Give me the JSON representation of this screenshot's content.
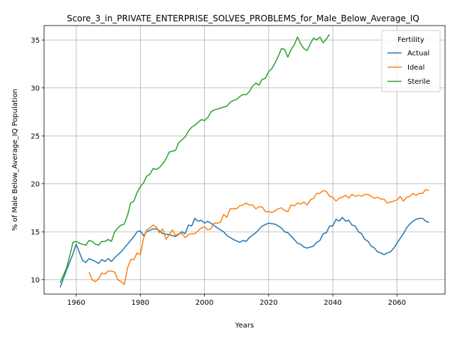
{
  "chart_data": {
    "type": "line",
    "title": "Score_3_in_PRIVATE_ENTERPRISE_SOLVES_PROBLEMS_for_Male_Below_Average_IQ",
    "xlabel": "Years",
    "ylabel": "% of Male Below_Average_IQ Population",
    "xlim": [
      1950,
      2075
    ],
    "ylim": [
      8.5,
      36.5
    ],
    "xticks": [
      1960,
      1980,
      2000,
      2020,
      2040,
      2060
    ],
    "yticks": [
      10,
      15,
      20,
      25,
      30,
      35
    ],
    "grid": true,
    "legend": {
      "title": "Fertility",
      "placement": "top-right"
    },
    "series": [
      {
        "name": "Actual",
        "color": "#1f77b4",
        "points": [
          [
            1955,
            9.2
          ],
          [
            1957,
            11
          ],
          [
            1959,
            12.7
          ],
          [
            1960,
            13.7
          ],
          [
            1962,
            12
          ],
          [
            1963,
            11.8
          ],
          [
            1964,
            12.2
          ],
          [
            1966,
            11.9
          ],
          [
            1967,
            11.7
          ],
          [
            1968,
            12.1
          ],
          [
            1969,
            11.9
          ],
          [
            1970,
            12.2
          ],
          [
            1971,
            11.9
          ],
          [
            1972,
            12.3
          ],
          [
            1974,
            12.9
          ],
          [
            1976,
            13.7
          ],
          [
            1978,
            14.5
          ],
          [
            1979,
            15.0
          ],
          [
            1980,
            15.1
          ],
          [
            1981,
            14.6
          ],
          [
            1982,
            15.0
          ],
          [
            1984,
            15.3
          ],
          [
            1985,
            15.3
          ],
          [
            1986,
            15.1
          ],
          [
            1987,
            14.8
          ],
          [
            1989,
            14.7
          ],
          [
            1991,
            14.5
          ],
          [
            1993,
            15.0
          ],
          [
            1994,
            14.8
          ],
          [
            1995,
            15.7
          ],
          [
            1996,
            15.6
          ],
          [
            1997,
            16.4
          ],
          [
            1998,
            16.1
          ],
          [
            1999,
            16.2
          ],
          [
            2000,
            15.9
          ],
          [
            2001,
            16.1
          ],
          [
            2002,
            15.9
          ],
          [
            2004,
            15.4
          ],
          [
            2006,
            15.0
          ],
          [
            2007,
            14.6
          ],
          [
            2009,
            14.2
          ],
          [
            2011,
            13.9
          ],
          [
            2012,
            14.1
          ],
          [
            2013,
            14.0
          ],
          [
            2014,
            14.4
          ],
          [
            2016,
            14.9
          ],
          [
            2018,
            15.6
          ],
          [
            2020,
            15.9
          ],
          [
            2022,
            15.8
          ],
          [
            2024,
            15.4
          ],
          [
            2025,
            15.0
          ],
          [
            2026,
            14.9
          ],
          [
            2028,
            14.2
          ],
          [
            2029,
            13.8
          ],
          [
            2030,
            13.7
          ],
          [
            2031,
            13.4
          ],
          [
            2032,
            13.3
          ],
          [
            2034,
            13.5
          ],
          [
            2035,
            13.9
          ],
          [
            2036,
            14.1
          ],
          [
            2037,
            14.8
          ],
          [
            2038,
            14.9
          ],
          [
            2039,
            15.6
          ],
          [
            2040,
            15.6
          ],
          [
            2041,
            16.3
          ],
          [
            2042,
            16.1
          ],
          [
            2043,
            16.5
          ],
          [
            2044,
            16.1
          ],
          [
            2045,
            16.2
          ],
          [
            2046,
            15.7
          ],
          [
            2047,
            15.6
          ],
          [
            2048,
            15.0
          ],
          [
            2049,
            14.8
          ],
          [
            2050,
            14.2
          ],
          [
            2051,
            14.0
          ],
          [
            2052,
            13.5
          ],
          [
            2053,
            13.3
          ],
          [
            2054,
            12.9
          ],
          [
            2055,
            12.8
          ],
          [
            2056,
            12.6
          ],
          [
            2057,
            12.8
          ],
          [
            2058,
            12.9
          ],
          [
            2059,
            13.3
          ],
          [
            2060,
            13.8
          ],
          [
            2061,
            14.3
          ],
          [
            2062,
            14.8
          ],
          [
            2063,
            15.4
          ],
          [
            2064,
            15.8
          ],
          [
            2065,
            16.1
          ],
          [
            2066,
            16.3
          ],
          [
            2067,
            16.4
          ],
          [
            2068,
            16.4
          ],
          [
            2069,
            16.1
          ],
          [
            2070,
            16.0
          ]
        ]
      },
      {
        "name": "Ideal",
        "color": "#ff7f0e",
        "points": [
          [
            1964,
            10.8
          ],
          [
            1965,
            10
          ],
          [
            1966,
            9.8
          ],
          [
            1967,
            10.1
          ],
          [
            1968,
            10.7
          ],
          [
            1969,
            10.6
          ],
          [
            1970,
            10.9
          ],
          [
            1971,
            10.9
          ],
          [
            1972,
            10.8
          ],
          [
            1973,
            10.0
          ],
          [
            1974,
            9.8
          ],
          [
            1975,
            9.5
          ],
          [
            1976,
            11.2
          ],
          [
            1977,
            12.1
          ],
          [
            1978,
            12.1
          ],
          [
            1979,
            12.8
          ],
          [
            1980,
            12.6
          ],
          [
            1981,
            14.3
          ],
          [
            1982,
            15.2
          ],
          [
            1983,
            15.4
          ],
          [
            1984,
            15.7
          ],
          [
            1985,
            15.5
          ],
          [
            1986,
            14.9
          ],
          [
            1987,
            15.3
          ],
          [
            1988,
            14.2
          ],
          [
            1989,
            14.7
          ],
          [
            1990,
            15.2
          ],
          [
            1991,
            14.6
          ],
          [
            1992,
            14.8
          ],
          [
            1993,
            14.8
          ],
          [
            1994,
            14.4
          ],
          [
            1995,
            14.7
          ],
          [
            1996,
            14.8
          ],
          [
            1997,
            14.8
          ],
          [
            1998,
            15.1
          ],
          [
            1999,
            15.4
          ],
          [
            2000,
            15.5
          ],
          [
            2001,
            15.2
          ],
          [
            2002,
            15.3
          ],
          [
            2003,
            15.9
          ],
          [
            2004,
            15.9
          ],
          [
            2005,
            16.0
          ],
          [
            2006,
            16.8
          ],
          [
            2007,
            16.5
          ],
          [
            2008,
            17.4
          ],
          [
            2009,
            17.4
          ],
          [
            2010,
            17.4
          ],
          [
            2011,
            17.7
          ],
          [
            2012,
            17.8
          ],
          [
            2013,
            18.0
          ],
          [
            2014,
            17.8
          ],
          [
            2015,
            17.8
          ],
          [
            2016,
            17.4
          ],
          [
            2017,
            17.6
          ],
          [
            2018,
            17.6
          ],
          [
            2019,
            17.1
          ],
          [
            2020,
            17.1
          ],
          [
            2021,
            17.0
          ],
          [
            2022,
            17.2
          ],
          [
            2023,
            17.4
          ],
          [
            2024,
            17.5
          ],
          [
            2025,
            17.2
          ],
          [
            2026,
            17.1
          ],
          [
            2027,
            17.8
          ],
          [
            2028,
            17.7
          ],
          [
            2029,
            18.0
          ],
          [
            2030,
            17.9
          ],
          [
            2031,
            18.1
          ],
          [
            2032,
            17.8
          ],
          [
            2033,
            18.3
          ],
          [
            2034,
            18.5
          ],
          [
            2035,
            19.0
          ],
          [
            2036,
            19.0
          ],
          [
            2037,
            19.3
          ],
          [
            2038,
            19.2
          ],
          [
            2039,
            18.7
          ],
          [
            2040,
            18.6
          ],
          [
            2041,
            18.2
          ],
          [
            2042,
            18.5
          ],
          [
            2043,
            18.6
          ],
          [
            2044,
            18.8
          ],
          [
            2045,
            18.5
          ],
          [
            2046,
            18.9
          ],
          [
            2047,
            18.7
          ],
          [
            2048,
            18.8
          ],
          [
            2049,
            18.7
          ],
          [
            2050,
            18.9
          ],
          [
            2051,
            18.9
          ],
          [
            2052,
            18.7
          ],
          [
            2053,
            18.5
          ],
          [
            2054,
            18.6
          ],
          [
            2055,
            18.4
          ],
          [
            2056,
            18.4
          ],
          [
            2057,
            18.0
          ],
          [
            2058,
            18.1
          ],
          [
            2059,
            18.2
          ],
          [
            2060,
            18.3
          ],
          [
            2061,
            18.7
          ],
          [
            2062,
            18.2
          ],
          [
            2063,
            18.6
          ],
          [
            2064,
            18.7
          ],
          [
            2065,
            19.0
          ],
          [
            2066,
            18.8
          ],
          [
            2067,
            19.0
          ],
          [
            2068,
            19.0
          ],
          [
            2069,
            19.4
          ],
          [
            2070,
            19.3
          ]
        ]
      },
      {
        "name": "Sterile",
        "color": "#2ca02c",
        "points": [
          [
            1955,
            9.7
          ],
          [
            1957,
            11.2
          ],
          [
            1958,
            12.5
          ],
          [
            1959,
            13.9
          ],
          [
            1960,
            14.0
          ],
          [
            1961,
            13.8
          ],
          [
            1962,
            13.7
          ],
          [
            1963,
            13.6
          ],
          [
            1964,
            14.1
          ],
          [
            1965,
            14.0
          ],
          [
            1966,
            13.7
          ],
          [
            1967,
            13.6
          ],
          [
            1968,
            14.0
          ],
          [
            1969,
            14.0
          ],
          [
            1970,
            14.2
          ],
          [
            1971,
            14.0
          ],
          [
            1972,
            15.0
          ],
          [
            1973,
            15.4
          ],
          [
            1974,
            15.7
          ],
          [
            1975,
            15.8
          ],
          [
            1976,
            16.7
          ],
          [
            1977,
            18.0
          ],
          [
            1978,
            18.2
          ],
          [
            1979,
            19.1
          ],
          [
            1980,
            19.7
          ],
          [
            1981,
            20.1
          ],
          [
            1982,
            20.8
          ],
          [
            1983,
            21.0
          ],
          [
            1984,
            21.6
          ],
          [
            1985,
            21.5
          ],
          [
            1986,
            21.7
          ],
          [
            1987,
            22.1
          ],
          [
            1988,
            22.6
          ],
          [
            1989,
            23.3
          ],
          [
            1990,
            23.4
          ],
          [
            1991,
            23.5
          ],
          [
            1992,
            24.3
          ],
          [
            1993,
            24.6
          ],
          [
            1994,
            24.9
          ],
          [
            1995,
            25.5
          ],
          [
            1996,
            25.9
          ],
          [
            1997,
            26.1
          ],
          [
            1998,
            26.4
          ],
          [
            1999,
            26.7
          ],
          [
            2000,
            26.6
          ],
          [
            2001,
            26.9
          ],
          [
            2002,
            27.5
          ],
          [
            2003,
            27.7
          ],
          [
            2004,
            27.8
          ],
          [
            2005,
            27.9
          ],
          [
            2006,
            28.0
          ],
          [
            2007,
            28.1
          ],
          [
            2008,
            28.5
          ],
          [
            2009,
            28.7
          ],
          [
            2010,
            28.8
          ],
          [
            2011,
            29.1
          ],
          [
            2012,
            29.3
          ],
          [
            2013,
            29.3
          ],
          [
            2014,
            29.6
          ],
          [
            2015,
            30.2
          ],
          [
            2016,
            30.5
          ],
          [
            2017,
            30.3
          ],
          [
            2018,
            30.9
          ],
          [
            2019,
            31.0
          ],
          [
            2020,
            31.7
          ],
          [
            2021,
            32.0
          ],
          [
            2022,
            32.6
          ],
          [
            2023,
            33.3
          ],
          [
            2024,
            34.1
          ],
          [
            2025,
            34.0
          ],
          [
            2026,
            33.2
          ],
          [
            2027,
            34.0
          ],
          [
            2028,
            34.5
          ],
          [
            2029,
            35.3
          ],
          [
            2030,
            34.6
          ],
          [
            2031,
            34.1
          ],
          [
            2032,
            33.9
          ],
          [
            2033,
            34.6
          ],
          [
            2034,
            35.2
          ],
          [
            2035,
            35.0
          ],
          [
            2036,
            35.3
          ],
          [
            2037,
            34.7
          ],
          [
            2038,
            35.1
          ],
          [
            2039,
            35.6
          ]
        ]
      }
    ]
  }
}
